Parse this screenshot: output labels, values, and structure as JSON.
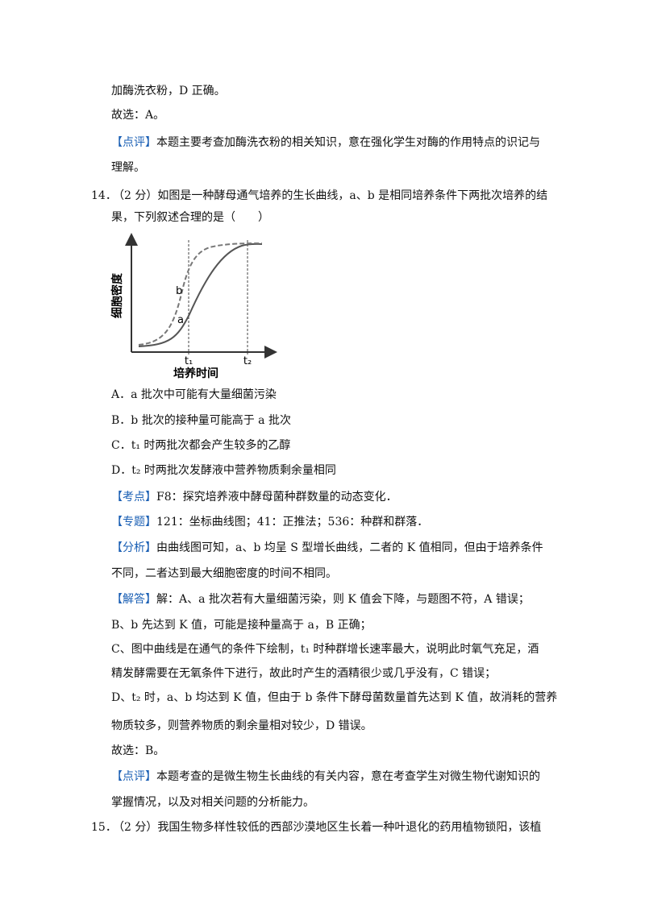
{
  "prev_answer": {
    "lines": [
      "加酶洗衣粉，D 正确。"
    ],
    "choice": "故选：A。"
  },
  "prev_comment": {
    "tag": "【点评】",
    "lines": [
      "本题主要考查加酶洗衣粉的相关知识，意在强化学生对酶的作用特点的识记与",
      "理解。"
    ]
  },
  "question": {
    "number": "14．",
    "lines": [
      "（2 分）如图是一种酵母通气培养的生长曲线，a、b 是相同培养条件下两批次培养的结",
      "果，下列叙述合理的是（　　）"
    ]
  },
  "figure": {
    "y_label": "细胞密度",
    "x_label": "培养时间",
    "curve_a": "a",
    "curve_b": "b",
    "t1": "t₁",
    "t2": "t₂"
  },
  "options": [
    "A．a 批次中可能有大量细菌污染",
    "B．b 批次的接种量可能高于 a 批次",
    "C．t₁ 时两批次都会产生较多的乙醇",
    "D．t₂ 时两批次发酵液中营养物质剩余量相同"
  ],
  "kaodian": {
    "tag": "【考点】",
    "lines": [
      "F8：探究培养液中酵母菌种群数量的动态变化．"
    ]
  },
  "zhuanti": {
    "tag": "【专题】",
    "lines": [
      "121：坐标曲线图；41：正推法；536：种群和群落．"
    ]
  },
  "fenxi": {
    "tag": "【分析】",
    "lines": [
      "由曲线图可知，a、b 均呈 S 型增长曲线，二者的 K 值相同，但由于培养条件",
      "不同，二者达到最大细胞密度的时间不相同。"
    ]
  },
  "jieda": {
    "tag": "【解答】",
    "lines": [
      "解：A、a 批次若有大量细菌污染，则 K 值会下降，与题图不符，A 错误；",
      "B、b 先达到 K 值，可能是接种量高于 a，B 正确；",
      "C、图中曲线是在通气的条件下绘制，t₁ 时种群增长速率最大，说明此时氧气充足，酒",
      "精发酵需要在无氧条件下进行，故此时产生的酒精很少或几乎没有，C 错误；",
      "D、t₂ 时，a、b 均达到 K 值，但由于 b 条件下酵母菌数量首先达到 K 值，故消耗的营养",
      "物质较多，则营养物质的剩余量相对较少，D 错误。"
    ],
    "choice": "故选：B。"
  },
  "dianping": {
    "tag": "【点评】",
    "lines": [
      "本题考查的是微生物生长曲线的有关内容，意在考查学生对微生物代谢知识的",
      "掌握情况，以及对相关问题的分析能力。"
    ]
  },
  "next_question": {
    "number": "15．",
    "lines": [
      "（2 分）我国生物多样性较低的西部沙漠地区生长着一种叶退化的药用植物锁阳，该植"
    ]
  }
}
